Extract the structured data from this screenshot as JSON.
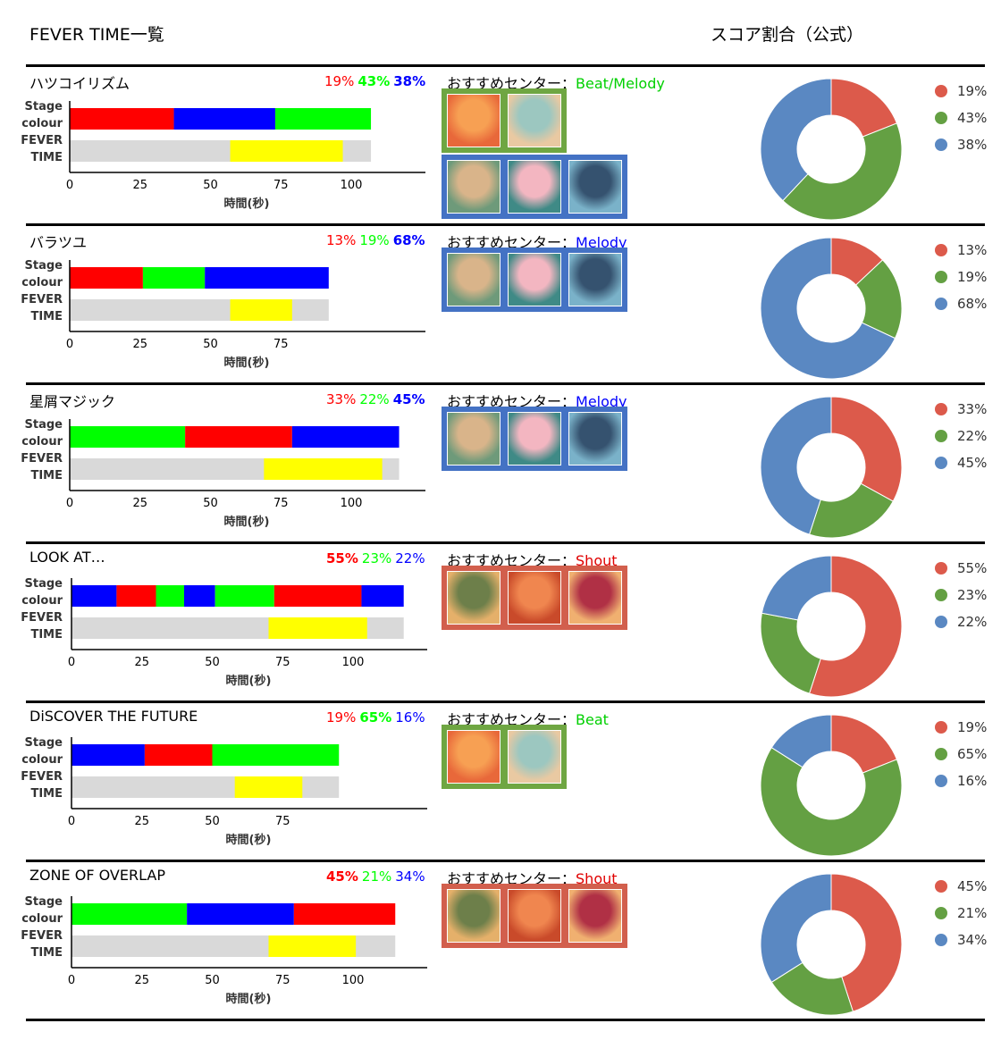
{
  "header": {
    "title": "FEVER TIME一覧",
    "score_title": "スコア割合（公式）"
  },
  "labels": {
    "stage": "Stage",
    "colour": "colour",
    "fever": "FEVER",
    "time": "TIME",
    "xlabel": "時間(秒)",
    "center_prefix": "おすすめセンター："
  },
  "colors": {
    "stage_red": "#ff0000",
    "stage_green": "#00ff00",
    "stage_blue": "#0000ff",
    "fever": "#ffff00",
    "track": "#d9d9d9",
    "pie_red": "#dc5a4b",
    "pie_green": "#64a043",
    "pie_blue": "#5a88c2",
    "group_green": "#6fa642",
    "group_blue": "#4472c4",
    "group_red": "#d25f4d",
    "center_green": "#00d000",
    "center_blue": "#0000ff",
    "center_red": "#e00000"
  },
  "songs": [
    {
      "title": "ハツコイリズム",
      "percents": [
        {
          "text": "19%",
          "color": "red",
          "bold": false
        },
        {
          "text": "43%",
          "color": "green",
          "bold": true
        },
        {
          "text": "38%",
          "color": "blue",
          "bold": true
        }
      ],
      "center": {
        "text": "Beat/Melody",
        "color": "green"
      },
      "portrait_groups": [
        {
          "border": "green",
          "count": 2
        },
        {
          "border": "blue",
          "count": 3
        }
      ],
      "chart_data": {
        "type": "bar",
        "xlabel": "時間(秒)",
        "xticks": [
          0,
          25,
          50,
          75,
          100
        ],
        "stage_segments": [
          {
            "start": 0,
            "end": 37,
            "color": "red"
          },
          {
            "start": 37,
            "end": 73,
            "color": "blue"
          },
          {
            "start": 73,
            "end": 107,
            "color": "green"
          }
        ],
        "fever": {
          "start": 57,
          "end": 97
        },
        "total": 107
      },
      "pie": [
        {
          "label": "19%",
          "value": 19,
          "color": "red"
        },
        {
          "label": "43%",
          "value": 43,
          "color": "green"
        },
        {
          "label": "38%",
          "value": 38,
          "color": "blue"
        }
      ]
    },
    {
      "title": "バラツユ",
      "percents": [
        {
          "text": "13%",
          "color": "red",
          "bold": false
        },
        {
          "text": "19%",
          "color": "green",
          "bold": false
        },
        {
          "text": "68%",
          "color": "blue",
          "bold": true
        }
      ],
      "center": {
        "text": "Melody",
        "color": "blue"
      },
      "portrait_groups": [
        {
          "border": "blue",
          "count": 3
        }
      ],
      "chart_data": {
        "type": "bar",
        "xlabel": "時間(秒)",
        "xticks": [
          0,
          25,
          50,
          75
        ],
        "stage_segments": [
          {
            "start": 0,
            "end": 26,
            "color": "red"
          },
          {
            "start": 26,
            "end": 48,
            "color": "green"
          },
          {
            "start": 48,
            "end": 92,
            "color": "blue"
          }
        ],
        "fever": {
          "start": 57,
          "end": 79
        },
        "total": 92
      },
      "pie": [
        {
          "label": "13%",
          "value": 13,
          "color": "red"
        },
        {
          "label": "19%",
          "value": 19,
          "color": "green"
        },
        {
          "label": "68%",
          "value": 68,
          "color": "blue"
        }
      ]
    },
    {
      "title": "星屑マジック",
      "percents": [
        {
          "text": "33%",
          "color": "red",
          "bold": false
        },
        {
          "text": "22%",
          "color": "green",
          "bold": false
        },
        {
          "text": "45%",
          "color": "blue",
          "bold": true
        }
      ],
      "center": {
        "text": "Melody",
        "color": "blue"
      },
      "portrait_groups": [
        {
          "border": "blue",
          "count": 3
        }
      ],
      "chart_data": {
        "type": "bar",
        "xlabel": "時間(秒)",
        "xticks": [
          0,
          25,
          50,
          75,
          100
        ],
        "stage_segments": [
          {
            "start": 0,
            "end": 41,
            "color": "green"
          },
          {
            "start": 41,
            "end": 79,
            "color": "red"
          },
          {
            "start": 79,
            "end": 117,
            "color": "blue"
          }
        ],
        "fever": {
          "start": 69,
          "end": 111
        },
        "total": 117
      },
      "pie": [
        {
          "label": "33%",
          "value": 33,
          "color": "red"
        },
        {
          "label": "22%",
          "value": 22,
          "color": "green"
        },
        {
          "label": "45%",
          "value": 45,
          "color": "blue"
        }
      ]
    },
    {
      "title": "LOOK AT…",
      "percents": [
        {
          "text": "55%",
          "color": "red",
          "bold": true
        },
        {
          "text": "23%",
          "color": "green",
          "bold": false
        },
        {
          "text": "22%",
          "color": "blue",
          "bold": false
        }
      ],
      "center": {
        "text": "Shout",
        "color": "red"
      },
      "portrait_groups": [
        {
          "border": "red",
          "count": 3
        }
      ],
      "chart_data": {
        "type": "bar",
        "xlabel": "時間(秒)",
        "xticks": [
          0,
          25,
          50,
          75,
          100
        ],
        "stage_segments": [
          {
            "start": 0,
            "end": 16,
            "color": "blue"
          },
          {
            "start": 16,
            "end": 30,
            "color": "red"
          },
          {
            "start": 30,
            "end": 40,
            "color": "green"
          },
          {
            "start": 40,
            "end": 51,
            "color": "blue"
          },
          {
            "start": 51,
            "end": 72,
            "color": "green"
          },
          {
            "start": 72,
            "end": 103,
            "color": "red"
          },
          {
            "start": 103,
            "end": 118,
            "color": "blue"
          }
        ],
        "fever": {
          "start": 70,
          "end": 105
        },
        "total": 118
      },
      "pie": [
        {
          "label": "55%",
          "value": 55,
          "color": "red"
        },
        {
          "label": "23%",
          "value": 23,
          "color": "green"
        },
        {
          "label": "22%",
          "value": 22,
          "color": "blue"
        }
      ]
    },
    {
      "title": "DiSCOVER THE FUTURE",
      "percents": [
        {
          "text": "19%",
          "color": "red",
          "bold": false
        },
        {
          "text": "65%",
          "color": "green",
          "bold": true
        },
        {
          "text": "16%",
          "color": "blue",
          "bold": false
        }
      ],
      "center": {
        "text": "Beat",
        "color": "green"
      },
      "portrait_groups": [
        {
          "border": "green",
          "count": 2
        }
      ],
      "chart_data": {
        "type": "bar",
        "xlabel": "時間(秒)",
        "xticks": [
          0,
          25,
          50,
          75
        ],
        "stage_segments": [
          {
            "start": 0,
            "end": 26,
            "color": "blue"
          },
          {
            "start": 26,
            "end": 50,
            "color": "red"
          },
          {
            "start": 50,
            "end": 95,
            "color": "green"
          }
        ],
        "fever": {
          "start": 58,
          "end": 82
        },
        "total": 95
      },
      "pie": [
        {
          "label": "19%",
          "value": 19,
          "color": "red"
        },
        {
          "label": "65%",
          "value": 65,
          "color": "green"
        },
        {
          "label": "16%",
          "value": 16,
          "color": "blue"
        }
      ]
    },
    {
      "title": "ZONE OF OVERLAP",
      "percents": [
        {
          "text": "45%",
          "color": "red",
          "bold": true
        },
        {
          "text": "21%",
          "color": "green",
          "bold": false
        },
        {
          "text": "34%",
          "color": "blue",
          "bold": false
        }
      ],
      "center": {
        "text": "Shout",
        "color": "red"
      },
      "portrait_groups": [
        {
          "border": "red",
          "count": 3
        }
      ],
      "chart_data": {
        "type": "bar",
        "xlabel": "時間(秒)",
        "xticks": [
          0,
          25,
          50,
          75,
          100
        ],
        "stage_segments": [
          {
            "start": 0,
            "end": 41,
            "color": "green"
          },
          {
            "start": 41,
            "end": 79,
            "color": "blue"
          },
          {
            "start": 79,
            "end": 115,
            "color": "red"
          }
        ],
        "fever": {
          "start": 70,
          "end": 101
        },
        "total": 115
      },
      "pie": [
        {
          "label": "45%",
          "value": 45,
          "color": "red"
        },
        {
          "label": "21%",
          "value": 21,
          "color": "green"
        },
        {
          "label": "34%",
          "value": 34,
          "color": "blue"
        }
      ]
    }
  ]
}
